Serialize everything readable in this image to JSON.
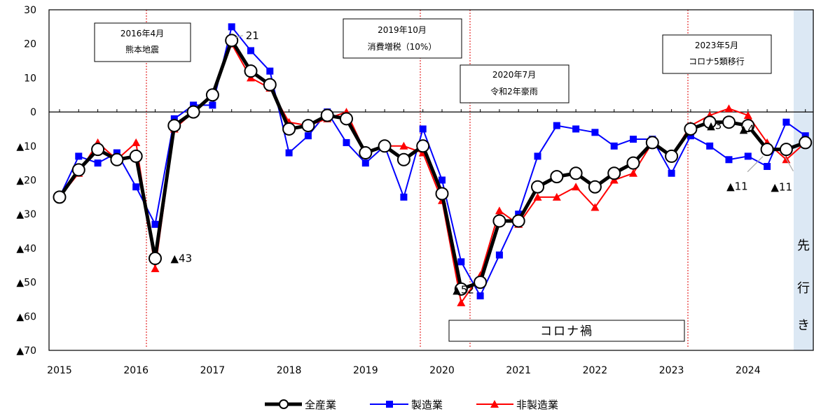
{
  "chart_data": {
    "type": "line",
    "ylim": [
      -70,
      30
    ],
    "y_ticks": [
      30,
      20,
      10,
      0,
      -10,
      -20,
      -30,
      -40,
      -50,
      -60,
      -70
    ],
    "y_tick_labels": [
      "30",
      "20",
      "10",
      "0",
      "▲10",
      "▲20",
      "▲30",
      "▲40",
      "▲50",
      "▲60",
      "▲70"
    ],
    "x_tick_labels": [
      "2015",
      "2016",
      "2017",
      "2018",
      "2019",
      "2020",
      "2021",
      "2022",
      "2023",
      "2024"
    ],
    "x": [
      "2015Q1",
      "2015Q2",
      "2015Q3",
      "2015Q4",
      "2016Q1",
      "2016Q2",
      "2016Q3",
      "2016Q4",
      "2017Q1",
      "2017Q2",
      "2017Q3",
      "2017Q4",
      "2018Q1",
      "2018Q2",
      "2018Q3",
      "2018Q4",
      "2019Q1",
      "2019Q2",
      "2019Q3",
      "2019Q4",
      "2020Q1",
      "2020Q2",
      "2020Q3",
      "2020Q4",
      "2021Q1",
      "2021Q2",
      "2021Q3",
      "2021Q4",
      "2022Q1",
      "2022Q2",
      "2022Q3",
      "2022Q4",
      "2023Q1",
      "2023Q2",
      "2023Q3",
      "2023Q4",
      "2024Q1",
      "2024Q2",
      "2024Q3",
      "2024Q4"
    ],
    "series": [
      {
        "name": "全産業",
        "color": "#000000",
        "values": [
          -25,
          -17,
          -11,
          -14,
          -13,
          -43,
          -4,
          0,
          5,
          21,
          12,
          8,
          -5,
          -4,
          -1,
          -2,
          -12,
          -10,
          -14,
          -10,
          -24,
          -52,
          -50,
          -32,
          -32,
          -22,
          -19,
          -18,
          -22,
          -18,
          -15,
          -9,
          -13,
          -5,
          -3,
          -3,
          -4,
          -11,
          -11,
          -9
        ]
      },
      {
        "name": "製造業",
        "color": "#0000ff",
        "values": [
          -25,
          -13,
          -15,
          -12,
          -22,
          -33,
          -2,
          2,
          2,
          25,
          18,
          12,
          -12,
          -7,
          0,
          -9,
          -15,
          -10,
          -25,
          -5,
          -20,
          -44,
          -54,
          -42,
          -30,
          -13,
          -4,
          -5,
          -6,
          -10,
          -8,
          -8,
          -18,
          -7,
          -10,
          -14,
          -13,
          -16,
          -3,
          -7
        ]
      },
      {
        "name": "非製造業",
        "color": "#ff0000",
        "values": [
          -25,
          -18,
          -9,
          -14,
          -9,
          -46,
          -5,
          0,
          5,
          20,
          10,
          7,
          -3,
          -4,
          -2,
          0,
          -12,
          -10,
          -10,
          -12,
          -26,
          -56,
          -48,
          -29,
          -33,
          -25,
          -25,
          -22,
          -28,
          -20,
          -18,
          -9,
          -13,
          -4,
          -1,
          1,
          -1,
          -9,
          -14,
          -9
        ]
      }
    ],
    "data_labels": [
      {
        "text": "21",
        "x": "2017Q2",
        "y": 21
      },
      {
        "text": "▲43",
        "x": "2016Q2",
        "y": -43
      },
      {
        "text": "▲52",
        "x": "2020Q2",
        "y": -52
      },
      {
        "text": "▲3",
        "x": "2023Q3",
        "y": -3
      },
      {
        "text": "▲4",
        "x": "2024Q1",
        "y": -4
      },
      {
        "text": "▲11",
        "x": "2024Q2",
        "y": -11
      },
      {
        "text": "▲11",
        "x": "2024Q3",
        "y": -11
      }
    ],
    "events": [
      {
        "line1": "2016年4月",
        "line2": "熊本地震"
      },
      {
        "line1": "2019年10月",
        "line2": "消費増税（10%）"
      },
      {
        "line1": "2020年7月",
        "line2": "令和2年豪雨"
      },
      {
        "line1": "2023年5月",
        "line2": "コロナ5類移行"
      }
    ],
    "covid_label": "コロナ禍",
    "forecast_chars": [
      "先",
      "行",
      "き"
    ],
    "forecast_color": "#dce8f4",
    "legend": [
      "全産業",
      "製造業",
      "非製造業"
    ],
    "legend_position": "bottom"
  }
}
